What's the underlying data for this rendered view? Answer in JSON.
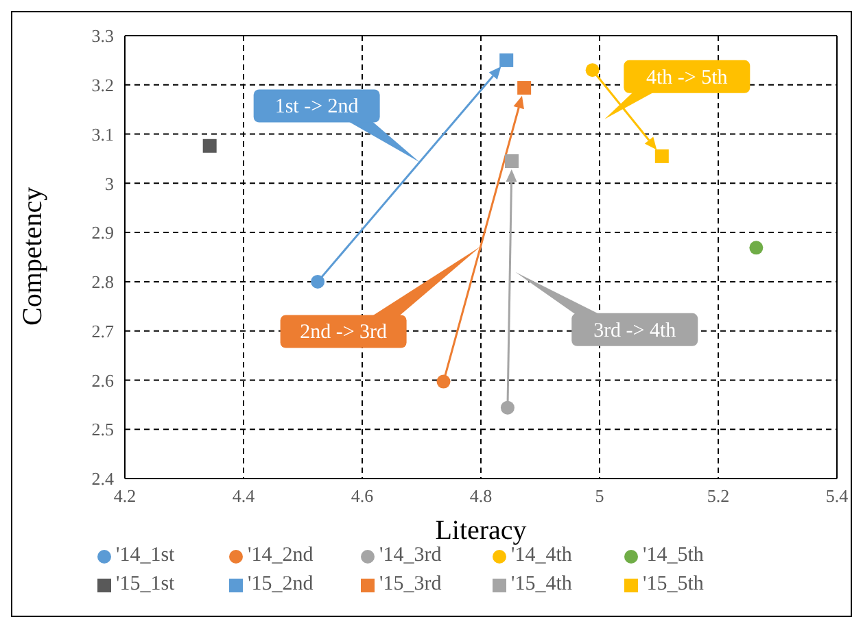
{
  "chart_data": {
    "type": "scatter",
    "xlabel": "Literacy",
    "ylabel": "Competency",
    "xlim": [
      4.2,
      5.4
    ],
    "xticks": [
      4.2,
      4.4,
      4.6,
      4.8,
      5,
      5.2,
      5.4
    ],
    "ylim": [
      2.4,
      3.3
    ],
    "yticks": [
      2.4,
      2.5,
      2.6,
      2.7,
      2.8,
      2.9,
      3,
      3.1,
      3.2,
      3.3
    ],
    "grid": true,
    "legend": "bottom",
    "series": [
      {
        "name": "'14_1st",
        "color": "#5b9bd5",
        "marker": "circle",
        "x": [
          4.525
        ],
        "values": [
          2.8
        ]
      },
      {
        "name": "'14_2nd",
        "color": "#ed7d31",
        "marker": "circle",
        "x": [
          4.737
        ],
        "values": [
          2.597
        ]
      },
      {
        "name": "'14_3rd",
        "color": "#a5a5a5",
        "marker": "circle",
        "x": [
          4.845
        ],
        "values": [
          2.544
        ]
      },
      {
        "name": "'14_4th",
        "color": "#ffc000",
        "marker": "circle",
        "x": [
          4.988
        ],
        "values": [
          3.23
        ]
      },
      {
        "name": "'14_5th",
        "color": "#70ad47",
        "marker": "circle",
        "x": [
          5.264
        ],
        "values": [
          2.869
        ]
      },
      {
        "name": "'15_1st",
        "color": "#595959",
        "marker": "square",
        "x": [
          4.343
        ],
        "values": [
          3.076
        ]
      },
      {
        "name": "'15_2nd",
        "color": "#5b9bd5",
        "marker": "square",
        "x": [
          4.843
        ],
        "values": [
          3.25
        ]
      },
      {
        "name": "'15_3rd",
        "color": "#ed7d31",
        "marker": "square",
        "x": [
          4.873
        ],
        "values": [
          3.194
        ]
      },
      {
        "name": "'15_4th",
        "color": "#a5a5a5",
        "marker": "square",
        "x": [
          4.852
        ],
        "values": [
          3.045
        ]
      },
      {
        "name": "'15_5th",
        "color": "#ffc000",
        "marker": "square",
        "x": [
          5.105
        ],
        "values": [
          3.055
        ]
      }
    ],
    "annotations": [
      "1st -> 2nd",
      "2nd -> 3rd",
      "3rd -> 4th",
      "4th -> 5th"
    ]
  }
}
